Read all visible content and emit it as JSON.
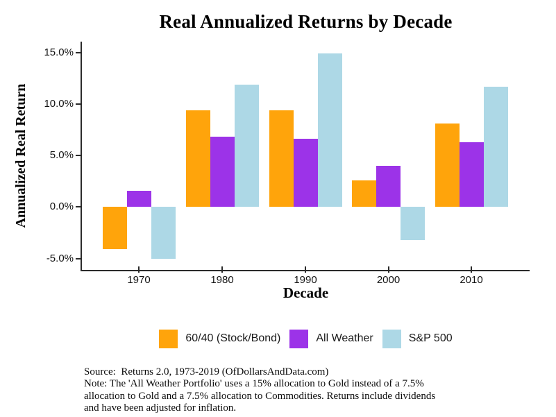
{
  "title": "Real Annualized Returns by Decade",
  "chart_data": {
    "type": "bar",
    "title": "Real Annualized Returns by Decade",
    "xlabel": "Decade",
    "ylabel": "Annualized Real Return",
    "categories": [
      "1970",
      "1980",
      "1990",
      "2000",
      "2010"
    ],
    "series": [
      {
        "name": "60/40 (Stock/Bond)",
        "color": "#FFA40B",
        "values": [
          -4.1,
          9.4,
          9.4,
          2.6,
          8.1
        ]
      },
      {
        "name": "All Weather",
        "color": "#9C33E8",
        "values": [
          1.6,
          6.8,
          6.6,
          4.0,
          6.3
        ]
      },
      {
        "name": "S&P 500",
        "color": "#ADD8E6",
        "values": [
          -5.0,
          11.9,
          14.9,
          -3.2,
          11.7
        ]
      }
    ],
    "yticks": [
      {
        "v": 15,
        "label": "15.0%"
      },
      {
        "v": 10,
        "label": "10.0%"
      },
      {
        "v": 5,
        "label": "5.0%"
      },
      {
        "v": 0,
        "label": "0.0%"
      },
      {
        "v": -5,
        "label": "-5.0%"
      }
    ],
    "ylim": [
      -6.1,
      16.05
    ],
    "grid": false,
    "legend_position": "bottom",
    "axis_color": "#2a2a2a",
    "background_color": "#ffffff"
  },
  "footer": {
    "lines": [
      "Source:  Returns 2.0, 1973-2019 (OfDollarsAndData.com)",
      "Note: The 'All Weather Portfolio' uses a 15% allocation to Gold instead of a 7.5%",
      "allocation to Gold and a 7.5% allocation to Commodities. Returns include dividends",
      "and have been adjusted for inflation."
    ]
  }
}
